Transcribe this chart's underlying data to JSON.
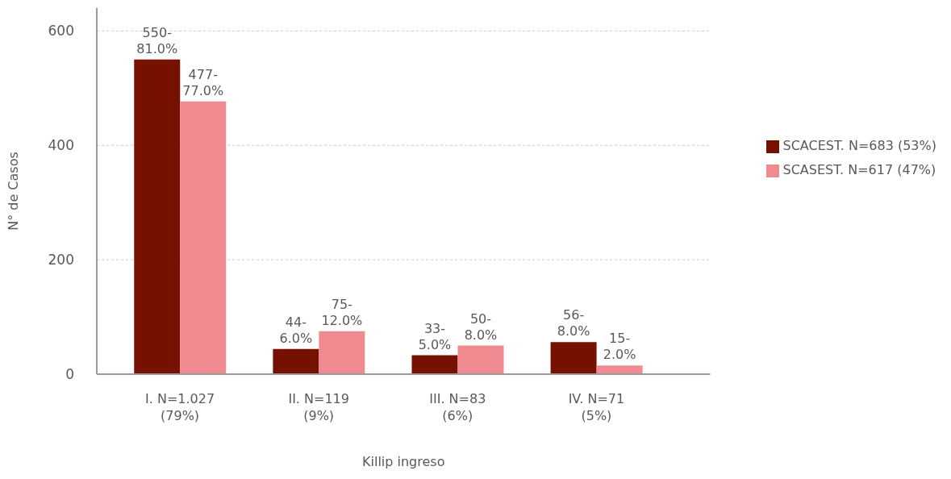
{
  "chart_data": {
    "type": "bar",
    "xlabel": "Killip ingreso",
    "ylabel": "N° de Casos",
    "categories": [
      "I. N=1.027\n(79%)",
      "II. N=119\n(9%)",
      "III. N=83\n(6%)",
      "IV. N=71\n(5%)"
    ],
    "series": [
      {
        "name": "SCACEST. N=683 (53%)",
        "color": "#761000",
        "values": [
          550,
          44,
          33,
          56
        ],
        "value_labels": [
          "550-\n81.0%",
          "44-\n6.0%",
          "33-\n5.0%",
          "56-\n8.0%"
        ]
      },
      {
        "name": "SCASEST. N=617 (47%)",
        "color": "#ef8a91",
        "values": [
          477,
          75,
          50,
          15
        ],
        "value_labels": [
          "477-\n77.0%",
          "75-\n12.0%",
          "50-\n8.0%",
          "15-\n2.0%"
        ]
      }
    ],
    "ylim": [
      0,
      640
    ],
    "yticks": [
      0,
      200,
      400,
      600
    ],
    "grid": "y",
    "legend": "right"
  }
}
